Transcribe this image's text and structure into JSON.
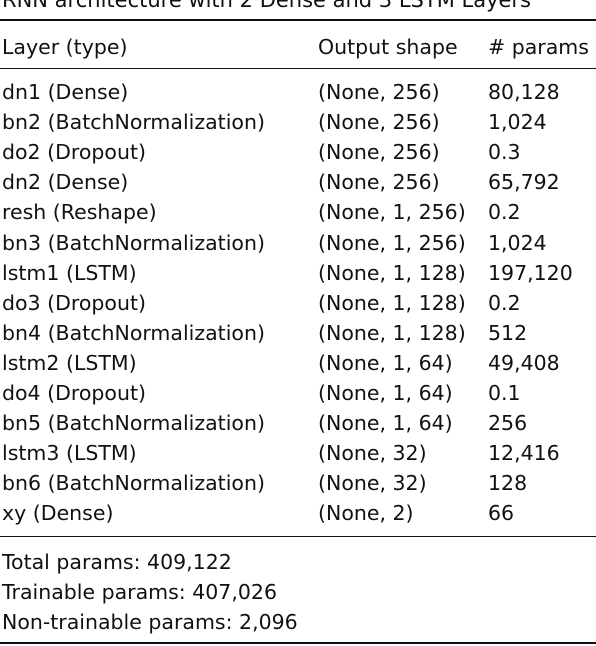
{
  "caption": "RNN architecture with 2 Dense and 3 LSTM Layers",
  "table": {
    "headers": [
      "Layer (type)",
      "Output shape",
      "# params"
    ],
    "rows": [
      [
        "dn1 (Dense)",
        "(None, 256)",
        "80,128"
      ],
      [
        "bn2 (BatchNormalization)",
        "(None, 256)",
        "1,024"
      ],
      [
        "do2 (Dropout)",
        "(None, 256)",
        "0.3"
      ],
      [
        "dn2 (Dense)",
        "(None, 256)",
        "65,792"
      ],
      [
        "resh (Reshape)",
        "(None, 1, 256)",
        "0.2"
      ],
      [
        "bn3 (BatchNormalization)",
        "(None, 1, 256)",
        "1,024"
      ],
      [
        "lstm1 (LSTM)",
        "(None, 1, 128)",
        "197,120"
      ],
      [
        "do3 (Dropout)",
        "(None, 1, 128)",
        "0.2"
      ],
      [
        "bn4 (BatchNormalization)",
        "(None, 1, 128)",
        "512"
      ],
      [
        "lstm2 (LSTM)",
        "(None, 1, 64)",
        "49,408"
      ],
      [
        "do4 (Dropout)",
        "(None, 1, 64)",
        "0.1"
      ],
      [
        "bn5 (BatchNormalization)",
        "(None, 1, 64)",
        "256"
      ],
      [
        "lstm3 (LSTM)",
        "(None, 32)",
        "12,416"
      ],
      [
        "bn6 (BatchNormalization)",
        "(None, 32)",
        "128"
      ],
      [
        "xy (Dense)",
        "(None, 2)",
        "66"
      ]
    ]
  },
  "summary": {
    "total": "Total params: 409,122",
    "trainable": "Trainable params: 407,026",
    "non_trainable": "Non-trainable params: 2,096"
  }
}
